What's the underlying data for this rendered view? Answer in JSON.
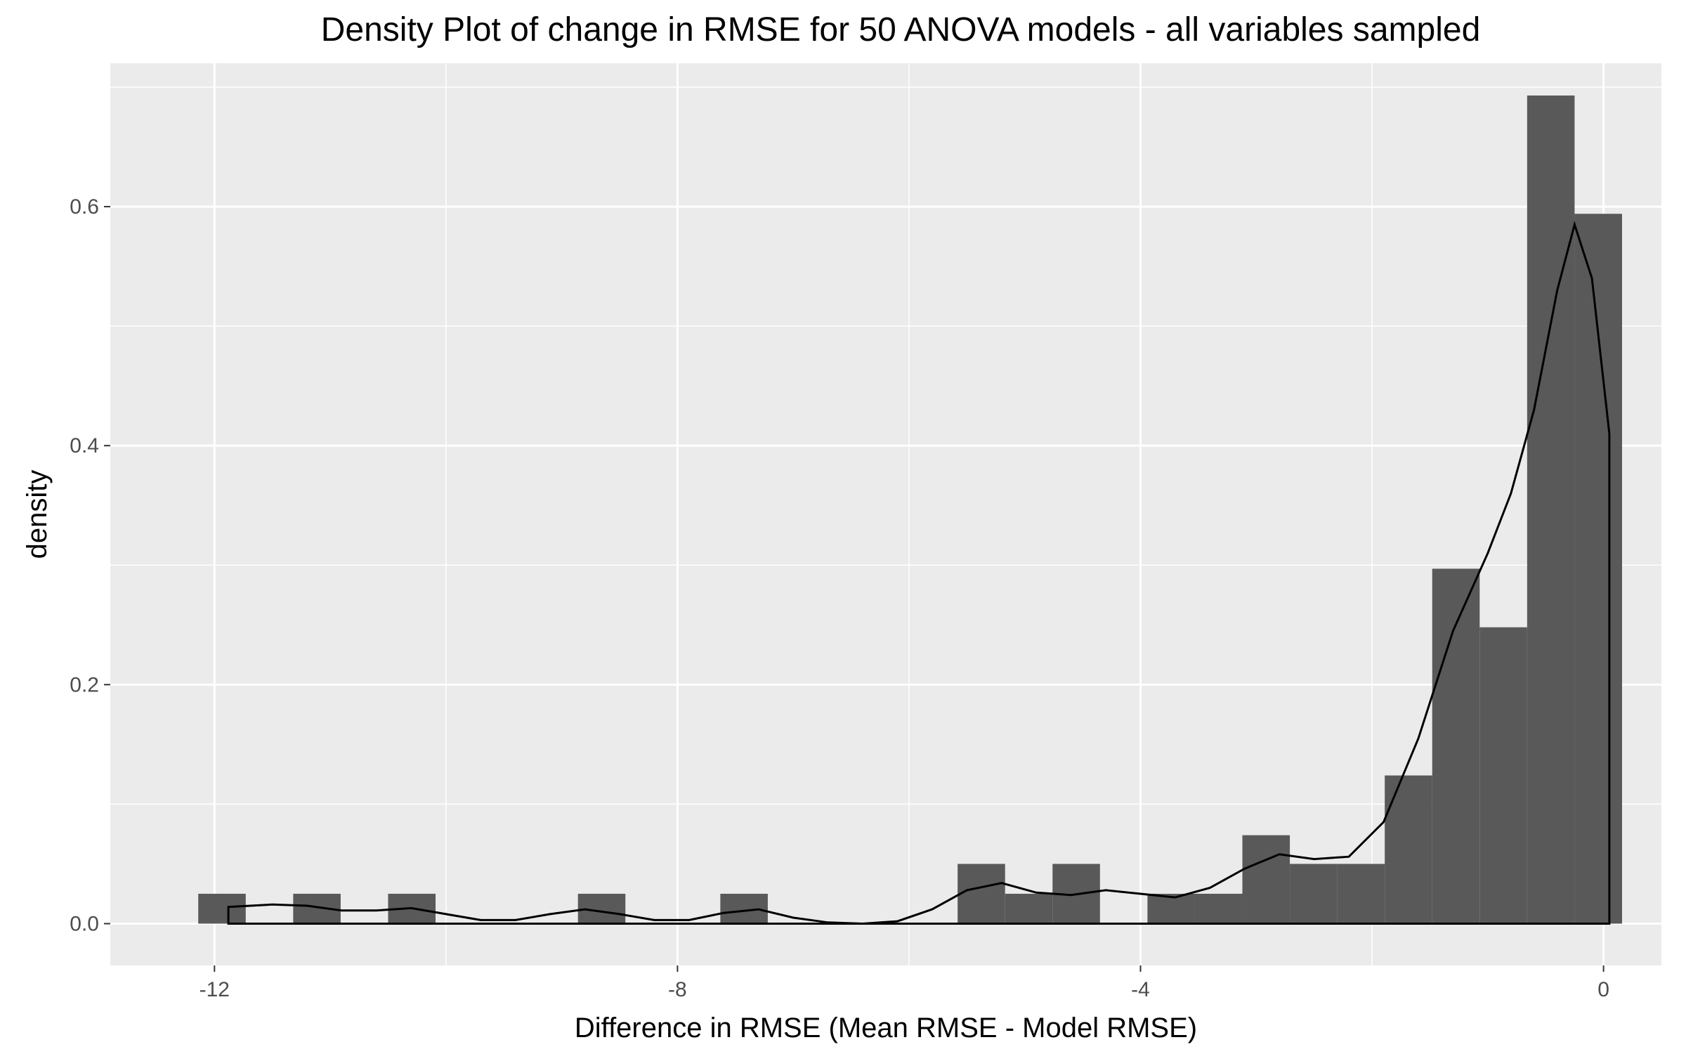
{
  "chart_data": {
    "type": "bar",
    "title": "Density Plot of change in RMSE for 50 ANOVA models - all variables sampled",
    "xlabel": "Difference in RMSE (Mean RMSE - Model RMSE)",
    "ylabel": "density",
    "xlim": [
      -12.9,
      0.5
    ],
    "ylim": [
      -0.035,
      0.72
    ],
    "x_ticks": [
      -12,
      -8,
      -4,
      0
    ],
    "x_tick_labels": [
      "-12",
      "-8",
      "-4",
      "0"
    ],
    "x_minor_ticks": [
      -14,
      -10,
      -6,
      -2
    ],
    "y_ticks": [
      0.0,
      0.2,
      0.4,
      0.6
    ],
    "y_tick_labels": [
      "0.0",
      "0.2",
      "0.4",
      "0.6"
    ],
    "y_minor_ticks": [
      0.1,
      0.3,
      0.5,
      0.7
    ],
    "grid": true,
    "legend": "none",
    "colors": {
      "panel_background": "#EBEBEB",
      "grid_line": "#FFFFFF",
      "bar_fill": "#595959",
      "density_line": "#000000",
      "tick_label": "#4D4D4D"
    },
    "histogram": {
      "bin_width": 0.41,
      "bins": [
        {
          "x0": -12.14,
          "x1": -11.73,
          "density": 0.025
        },
        {
          "x0": -11.73,
          "x1": -11.32,
          "density": 0.0
        },
        {
          "x0": -11.32,
          "x1": -10.91,
          "density": 0.025
        },
        {
          "x0": -10.91,
          "x1": -10.5,
          "density": 0.0
        },
        {
          "x0": -10.5,
          "x1": -10.09,
          "density": 0.025
        },
        {
          "x0": -10.09,
          "x1": -9.68,
          "density": 0.0
        },
        {
          "x0": -9.68,
          "x1": -9.27,
          "density": 0.0
        },
        {
          "x0": -9.27,
          "x1": -8.86,
          "density": 0.0
        },
        {
          "x0": -8.86,
          "x1": -8.45,
          "density": 0.025
        },
        {
          "x0": -8.45,
          "x1": -8.04,
          "density": 0.0
        },
        {
          "x0": -8.04,
          "x1": -7.63,
          "density": 0.0
        },
        {
          "x0": -7.63,
          "x1": -7.22,
          "density": 0.025
        },
        {
          "x0": -7.22,
          "x1": -6.81,
          "density": 0.0
        },
        {
          "x0": -6.81,
          "x1": -6.4,
          "density": 0.0
        },
        {
          "x0": -6.4,
          "x1": -5.99,
          "density": 0.0
        },
        {
          "x0": -5.99,
          "x1": -5.58,
          "density": 0.0
        },
        {
          "x0": -5.58,
          "x1": -5.17,
          "density": 0.05
        },
        {
          "x0": -5.17,
          "x1": -4.76,
          "density": 0.025
        },
        {
          "x0": -4.76,
          "x1": -4.35,
          "density": 0.05
        },
        {
          "x0": -4.35,
          "x1": -3.94,
          "density": 0.0
        },
        {
          "x0": -3.94,
          "x1": -3.53,
          "density": 0.025
        },
        {
          "x0": -3.53,
          "x1": -3.12,
          "density": 0.025
        },
        {
          "x0": -3.12,
          "x1": -2.71,
          "density": 0.074
        },
        {
          "x0": -2.71,
          "x1": -2.3,
          "density": 0.05
        },
        {
          "x0": -2.3,
          "x1": -1.89,
          "density": 0.05
        },
        {
          "x0": -1.89,
          "x1": -1.48,
          "density": 0.124
        },
        {
          "x0": -1.48,
          "x1": -1.07,
          "density": 0.297
        },
        {
          "x0": -1.07,
          "x1": -0.66,
          "density": 0.248
        },
        {
          "x0": -0.66,
          "x1": -0.25,
          "density": 0.693
        },
        {
          "x0": -0.25,
          "x1": 0.16,
          "density": 0.594
        }
      ]
    },
    "density_curve": {
      "x": [
        -11.88,
        -11.5,
        -11.2,
        -10.9,
        -10.6,
        -10.3,
        -10.0,
        -9.7,
        -9.4,
        -9.1,
        -8.8,
        -8.5,
        -8.2,
        -7.9,
        -7.6,
        -7.3,
        -7.0,
        -6.7,
        -6.4,
        -6.1,
        -5.8,
        -5.5,
        -5.2,
        -4.9,
        -4.6,
        -4.3,
        -4.0,
        -3.7,
        -3.4,
        -3.1,
        -2.8,
        -2.5,
        -2.2,
        -1.9,
        -1.6,
        -1.3,
        -1.0,
        -0.8,
        -0.6,
        -0.4,
        -0.25,
        -0.1,
        0.05
      ],
      "y": [
        0.014,
        0.016,
        0.015,
        0.011,
        0.011,
        0.013,
        0.008,
        0.003,
        0.003,
        0.008,
        0.012,
        0.008,
        0.003,
        0.003,
        0.009,
        0.012,
        0.005,
        0.001,
        0.0,
        0.002,
        0.012,
        0.028,
        0.034,
        0.026,
        0.024,
        0.028,
        0.025,
        0.022,
        0.03,
        0.046,
        0.058,
        0.054,
        0.056,
        0.085,
        0.155,
        0.245,
        0.31,
        0.36,
        0.43,
        0.53,
        0.585,
        0.54,
        0.41
      ]
    }
  }
}
